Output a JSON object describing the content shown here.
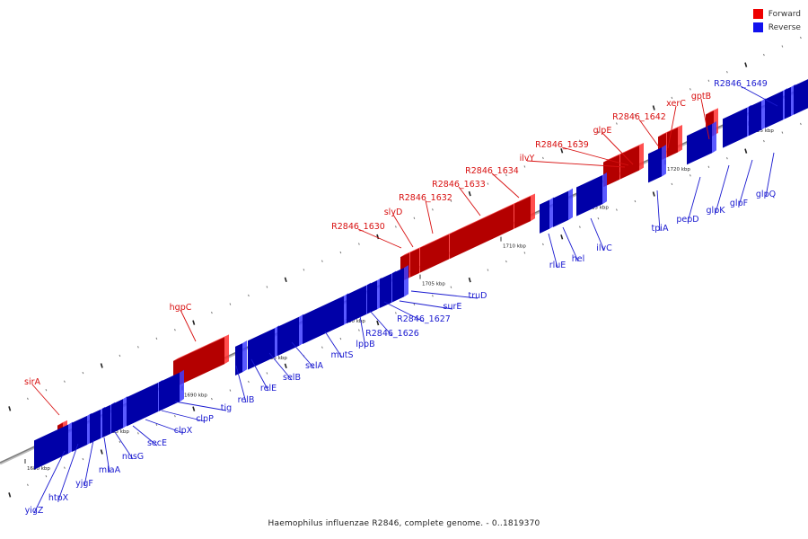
{
  "legend": {
    "forward_label": "Forward",
    "reverse_label": "Reverse",
    "forward_color": "#ee0000",
    "reverse_color": "#1111ee"
  },
  "caption": "Haemophilus influenzae R2846, complete genome. - 0..1819370",
  "colors": {
    "forward_top": "#ff3030",
    "forward_side": "#b40000",
    "reverse_top": "#3d3dff",
    "reverse_side": "#0000a8",
    "axis": "#9a9a9a",
    "forward_label": "#d81010",
    "reverse_label": "#1a1ad0"
  },
  "ticks": [
    "1680 kbp",
    "1685 kbp",
    "1690 kbp",
    "1695 kbp",
    "1700 kbp",
    "1705 kbp",
    "1710 kbp",
    "1715 kbp",
    "1720 kbp",
    "1725 kbp"
  ],
  "forward_genes": [
    {
      "label": "sirA"
    },
    {
      "label": "hgpC"
    },
    {
      "label": "R2846_1630"
    },
    {
      "label": "slyD"
    },
    {
      "label": "R2846_1632"
    },
    {
      "label": "R2846_1633"
    },
    {
      "label": "R2846_1634"
    },
    {
      "label": "ilvY"
    },
    {
      "label": "R2846_1639"
    },
    {
      "label": "glpE"
    },
    {
      "label": "R2846_1642"
    },
    {
      "label": "xerC"
    },
    {
      "label": "gptB"
    }
  ],
  "reverse_genes": [
    {
      "label": "yigZ"
    },
    {
      "label": "htpX"
    },
    {
      "label": "yjgF"
    },
    {
      "label": "mlaA"
    },
    {
      "label": "nusG"
    },
    {
      "label": "secE"
    },
    {
      "label": "clpX"
    },
    {
      "label": "clpP"
    },
    {
      "label": "tig"
    },
    {
      "label": "relB"
    },
    {
      "label": "relE"
    },
    {
      "label": "selB"
    },
    {
      "label": "selA"
    },
    {
      "label": "mutS"
    },
    {
      "label": "lppB"
    },
    {
      "label": "R2846_1626"
    },
    {
      "label": "R2846_1627"
    },
    {
      "label": "surE"
    },
    {
      "label": "truD"
    },
    {
      "label": "rluE"
    },
    {
      "label": "hel"
    },
    {
      "label": "ilvC"
    },
    {
      "label": "tpiA"
    },
    {
      "label": "pepD"
    },
    {
      "label": "glpK"
    },
    {
      "label": "glpF"
    },
    {
      "label": "glpQ"
    },
    {
      "label": "R2846_1649"
    }
  ]
}
